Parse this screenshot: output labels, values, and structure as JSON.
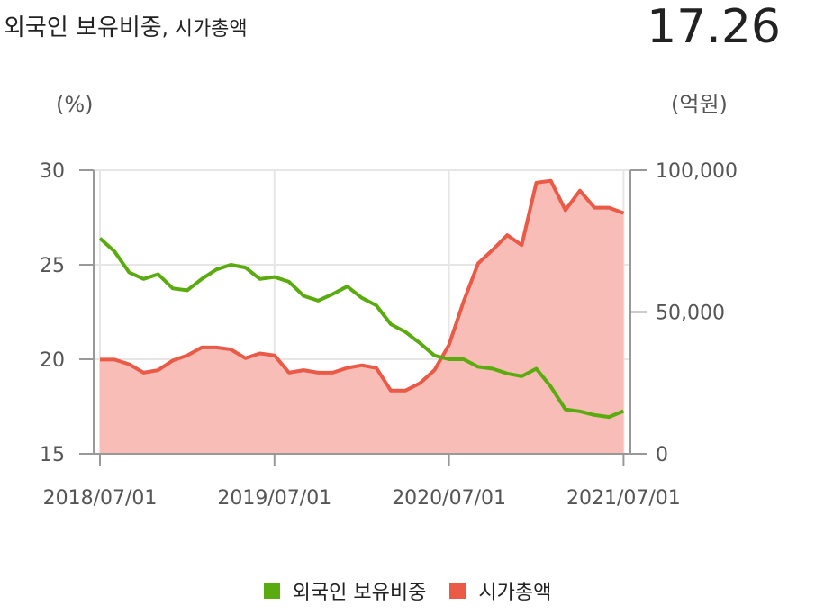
{
  "header": {
    "title": "외국인 보유비중",
    "subtitle": ", 시가총액",
    "value": "17.26"
  },
  "colors": {
    "foreign": "#5aab0e",
    "cap_line": "#ea5a47",
    "cap_fill": "#f8bdb6",
    "grid": "#e6e6e6",
    "axis": "#999999"
  },
  "chart_data": {
    "type": "line",
    "x": [
      "2018/07",
      "2018/08",
      "2018/09",
      "2018/10",
      "2018/11",
      "2018/12",
      "2019/01",
      "2019/02",
      "2019/03",
      "2019/04",
      "2019/05",
      "2019/06",
      "2019/07",
      "2019/08",
      "2019/09",
      "2019/10",
      "2019/11",
      "2019/12",
      "2020/01",
      "2020/02",
      "2020/03",
      "2020/04",
      "2020/05",
      "2020/06",
      "2020/07",
      "2020/08",
      "2020/09",
      "2020/10",
      "2020/11",
      "2020/12",
      "2021/01",
      "2021/02",
      "2021/03",
      "2021/04",
      "2021/05",
      "2021/06",
      "2021/07"
    ],
    "x_tick_labels": [
      "2018/07/01",
      "2019/07/01",
      "2020/07/01",
      "2021/07/01"
    ],
    "left_axis": {
      "unit": "(%)",
      "ylim": [
        15,
        30
      ],
      "ticks": [
        "30",
        "25",
        "20",
        "15"
      ]
    },
    "right_axis": {
      "unit": "(억원)",
      "ylim": [
        0,
        100000
      ],
      "ticks": [
        "100,000",
        "50,000",
        "0"
      ]
    },
    "series": [
      {
        "name": "외국인 보유비중",
        "axis": "left",
        "style": "line",
        "values": [
          26.4,
          25.7,
          24.6,
          24.25,
          24.5,
          23.75,
          23.65,
          24.25,
          24.75,
          25.0,
          24.85,
          24.25,
          24.35,
          24.1,
          23.35,
          23.1,
          23.45,
          23.85,
          23.25,
          22.85,
          21.85,
          21.45,
          20.85,
          20.2,
          20.0,
          20.0,
          19.6,
          19.5,
          19.25,
          19.1,
          19.5,
          18.55,
          17.35,
          17.25,
          17.05,
          16.95,
          17.26
        ]
      },
      {
        "name": "시가총액",
        "axis": "right",
        "style": "area",
        "values": [
          33200,
          33200,
          31600,
          28600,
          29500,
          32900,
          34700,
          37500,
          37500,
          36800,
          33700,
          35400,
          34700,
          28600,
          29500,
          28600,
          28600,
          30300,
          31200,
          30300,
          22300,
          22300,
          24900,
          29500,
          38400,
          53700,
          67100,
          71900,
          77100,
          73600,
          95600,
          96300,
          85900,
          92800,
          86800,
          86800,
          84900
        ]
      }
    ]
  }
}
